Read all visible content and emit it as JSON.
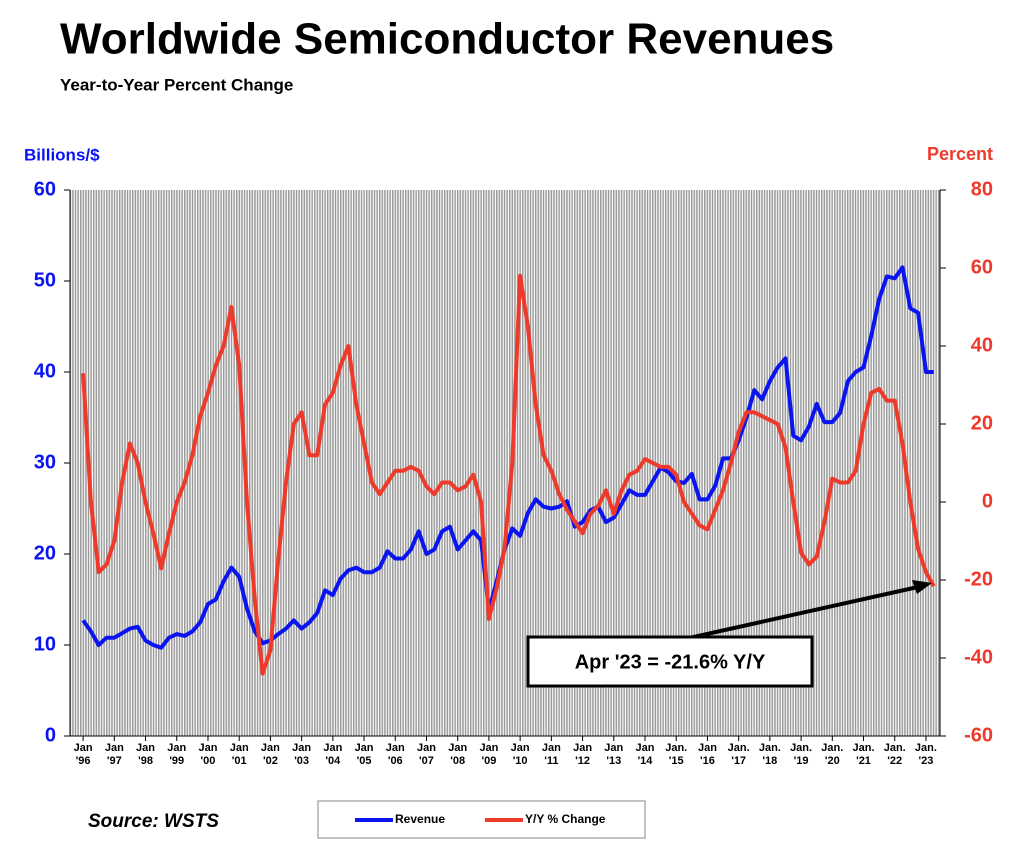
{
  "chart_data": {
    "type": "line",
    "title": "Worldwide Semiconductor Revenues",
    "subtitle": "Year-to-Year Percent Change",
    "y_label": "Billions/$",
    "y2_label": "Percent",
    "source": "Source: WSTS",
    "annotation": "Apr '23 = -21.6% Y/Y",
    "xlim": [
      1995.58,
      2023.45
    ],
    "ylim": [
      0,
      60
    ],
    "yticks": [
      0,
      10,
      20,
      30,
      40,
      50,
      60
    ],
    "y2lim": [
      -60,
      80
    ],
    "y2ticks": [
      -60,
      -40,
      -20,
      0,
      20,
      40,
      60,
      80
    ],
    "xticks": [
      {
        "value": 1996,
        "label": "Jan '96"
      },
      {
        "value": 1997,
        "label": "Jan '97"
      },
      {
        "value": 1998,
        "label": "Jan '98"
      },
      {
        "value": 1999,
        "label": "Jan '99"
      },
      {
        "value": 2000,
        "label": "Jan '00"
      },
      {
        "value": 2001,
        "label": "Jan '01"
      },
      {
        "value": 2002,
        "label": "Jan '02"
      },
      {
        "value": 2003,
        "label": "Jan '03"
      },
      {
        "value": 2004,
        "label": "Jan '04"
      },
      {
        "value": 2005,
        "label": "Jan '05"
      },
      {
        "value": 2006,
        "label": "Jan '06"
      },
      {
        "value": 2007,
        "label": "Jan '07"
      },
      {
        "value": 2008,
        "label": "Jan '08"
      },
      {
        "value": 2009,
        "label": "Jan '09"
      },
      {
        "value": 2010,
        "label": "Jan '10"
      },
      {
        "value": 2011,
        "label": "Jan '11"
      },
      {
        "value": 2012,
        "label": "Jan '12"
      },
      {
        "value": 2013,
        "label": "Jan '13"
      },
      {
        "value": 2014,
        "label": "Jan '14"
      },
      {
        "value": 2015,
        "label": "Jan. '15"
      },
      {
        "value": 2016,
        "label": "Jan '16"
      },
      {
        "value": 2017,
        "label": "Jan. '17"
      },
      {
        "value": 2018,
        "label": "Jan. '18"
      },
      {
        "value": 2019,
        "label": "Jan. '19"
      },
      {
        "value": 2020,
        "label": "Jan. '20"
      },
      {
        "value": 2021,
        "label": "Jan. '21"
      },
      {
        "value": 2022,
        "label": "Jan. '22"
      },
      {
        "value": 2023,
        "label": "Jan. '23"
      }
    ],
    "x": [
      1996,
      1996.25,
      1996.5,
      1996.75,
      1997,
      1997.25,
      1997.5,
      1997.75,
      1998,
      1998.25,
      1998.5,
      1998.75,
      1999,
      1999.25,
      1999.5,
      1999.75,
      2000,
      2000.25,
      2000.5,
      2000.75,
      2001,
      2001.25,
      2001.5,
      2001.75,
      2002,
      2002.25,
      2002.5,
      2002.75,
      2003,
      2003.25,
      2003.5,
      2003.75,
      2004,
      2004.25,
      2004.5,
      2004.75,
      2005,
      2005.25,
      2005.5,
      2005.75,
      2006,
      2006.25,
      2006.5,
      2006.75,
      2007,
      2007.25,
      2007.5,
      2007.75,
      2008,
      2008.25,
      2008.5,
      2008.75,
      2009,
      2009.25,
      2009.5,
      2009.75,
      2010,
      2010.25,
      2010.5,
      2010.75,
      2011,
      2011.25,
      2011.5,
      2011.75,
      2012,
      2012.25,
      2012.5,
      2012.75,
      2013,
      2013.25,
      2013.5,
      2013.75,
      2014,
      2014.25,
      2014.5,
      2014.75,
      2015,
      2015.25,
      2015.5,
      2015.75,
      2016,
      2016.25,
      2016.5,
      2016.75,
      2017,
      2017.25,
      2017.5,
      2017.75,
      2018,
      2018.25,
      2018.5,
      2018.75,
      2019,
      2019.25,
      2019.5,
      2019.75,
      2020,
      2020.25,
      2020.5,
      2020.75,
      2021,
      2021.25,
      2021.5,
      2021.75,
      2022,
      2022.25,
      2022.5,
      2022.75,
      2023,
      2023.25
    ],
    "series": [
      {
        "name": "Revenue",
        "color": "#0a14f0",
        "axis": "y",
        "values": [
          12.7,
          11.5,
          10.0,
          10.8,
          10.8,
          11.3,
          11.8,
          12.0,
          10.5,
          10.0,
          9.7,
          10.8,
          11.2,
          11.0,
          11.5,
          12.5,
          14.5,
          15.0,
          17.0,
          18.5,
          17.5,
          14.0,
          11.5,
          10.2,
          10.5,
          11.2,
          11.8,
          12.7,
          11.8,
          12.5,
          13.5,
          16.0,
          15.5,
          17.3,
          18.2,
          18.5,
          18.0,
          18.0,
          18.5,
          20.3,
          19.5,
          19.5,
          20.5,
          22.5,
          20.0,
          20.5,
          22.5,
          23.0,
          20.5,
          21.5,
          22.5,
          21.5,
          13.8,
          17.0,
          20.5,
          22.8,
          22.0,
          24.5,
          26.0,
          25.2,
          25.0,
          25.2,
          25.8,
          23.0,
          23.5,
          24.8,
          25.2,
          23.5,
          24.0,
          25.5,
          27.0,
          26.5,
          26.5,
          28.0,
          29.5,
          29.0,
          28.0,
          27.8,
          28.8,
          26.0,
          26.0,
          27.5,
          30.5,
          30.5,
          32.5,
          35.0,
          38.0,
          37.0,
          39.0,
          40.5,
          41.5,
          33.0,
          32.5,
          34.0,
          36.5,
          34.5,
          34.5,
          35.5,
          39.0,
          40.0,
          40.5,
          44.0,
          48.0,
          50.5,
          50.3,
          51.5,
          47.0,
          46.5,
          40.0,
          40.0
        ]
      },
      {
        "name": "Y/Y % Change",
        "color": "#ee3a2a",
        "axis": "y2",
        "values": [
          33,
          0,
          -18,
          -16,
          -10,
          5,
          15,
          10,
          0,
          -8,
          -17,
          -8,
          0,
          5,
          12,
          22,
          28,
          35,
          40,
          50,
          35,
          0,
          -25,
          -44,
          -38,
          -15,
          5,
          20,
          23,
          12,
          12,
          25,
          28,
          35,
          40,
          25,
          15,
          5,
          2,
          5,
          8,
          8,
          9,
          8,
          4,
          2,
          5,
          5,
          3,
          4,
          7,
          0,
          -30,
          -22,
          -12,
          10,
          58,
          45,
          25,
          12,
          8,
          2,
          -2,
          -5,
          -8,
          -3,
          -1,
          3,
          -3,
          3,
          7,
          8,
          11,
          10,
          9,
          9,
          7,
          0,
          -3,
          -6,
          -7,
          -2,
          3,
          10,
          18,
          23,
          23,
          22,
          21,
          20,
          14,
          0,
          -13,
          -16,
          -14,
          -5,
          6,
          5,
          5,
          8,
          20,
          28,
          29,
          26,
          26,
          15,
          0,
          -12,
          -18,
          -21.6
        ]
      }
    ]
  }
}
